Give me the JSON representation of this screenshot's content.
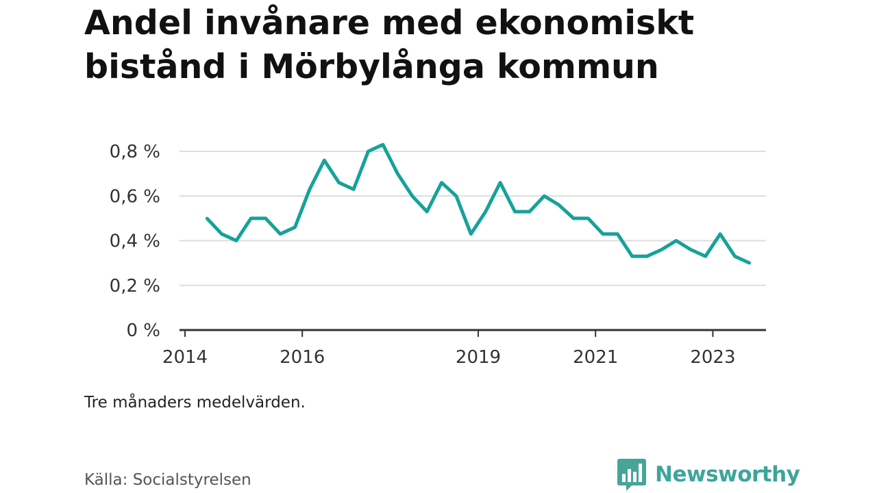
{
  "header": {
    "title_line1": "Andel invånare med ekonomiskt",
    "title_line2": "bistånd i Mörbylånga kommun"
  },
  "footer": {
    "note": "Tre månaders medelvärden.",
    "source": "Källa: Socialstyrelsen",
    "brand": "Newsworthy",
    "logo_icon": "bar-chart-speech-bubble-icon"
  },
  "colors": {
    "line": "#16A29A",
    "grid": "#DDDDDD",
    "axis": "#333333",
    "brand": "#3DA59A",
    "logo_bg": "#47A497"
  },
  "chart_data": {
    "type": "line",
    "title": "Andel invånare med ekonomiskt bistånd i Mörbylånga kommun",
    "xlabel": "",
    "ylabel": "",
    "ylim": [
      0,
      0.8
    ],
    "yticks": [
      {
        "value": 0,
        "label": "0 %"
      },
      {
        "value": 0.2,
        "label": "0,2 %"
      },
      {
        "value": 0.4,
        "label": "0,4 %"
      },
      {
        "value": 0.6,
        "label": "0,6 %"
      },
      {
        "value": 0.8,
        "label": "0,8 %"
      }
    ],
    "xticks": [
      {
        "value": 2014,
        "label": "2014"
      },
      {
        "value": 2016,
        "label": "2016"
      },
      {
        "value": 2019,
        "label": "2019"
      },
      {
        "value": 2021,
        "label": "2021"
      },
      {
        "value": 2023,
        "label": "2023"
      }
    ],
    "xlim": [
      2014,
      2024
    ],
    "grid": true,
    "series": [
      {
        "x": [
          2014.375,
          2014.625,
          2014.875,
          2015.125,
          2015.375,
          2015.625,
          2015.875,
          2016.125,
          2016.375,
          2016.625,
          2016.875,
          2017.125,
          2017.375,
          2017.625,
          2017.875,
          2018.125,
          2018.375,
          2018.625,
          2018.875,
          2019.125,
          2019.375,
          2019.625,
          2019.875,
          2020.125,
          2020.375,
          2020.625,
          2020.875,
          2021.125,
          2021.375,
          2021.625,
          2021.875,
          2022.125,
          2022.375,
          2022.625,
          2022.875,
          2023.125,
          2023.375,
          2023.625
        ],
        "values": [
          0.5,
          0.43,
          0.4,
          0.5,
          0.5,
          0.43,
          0.46,
          0.63,
          0.76,
          0.66,
          0.63,
          0.8,
          0.83,
          0.7,
          0.6,
          0.53,
          0.66,
          0.6,
          0.43,
          0.53,
          0.66,
          0.53,
          0.53,
          0.6,
          0.56,
          0.5,
          0.5,
          0.43,
          0.43,
          0.33,
          0.33,
          0.36,
          0.4,
          0.36,
          0.33,
          0.43,
          0.33,
          0.3
        ]
      }
    ]
  }
}
